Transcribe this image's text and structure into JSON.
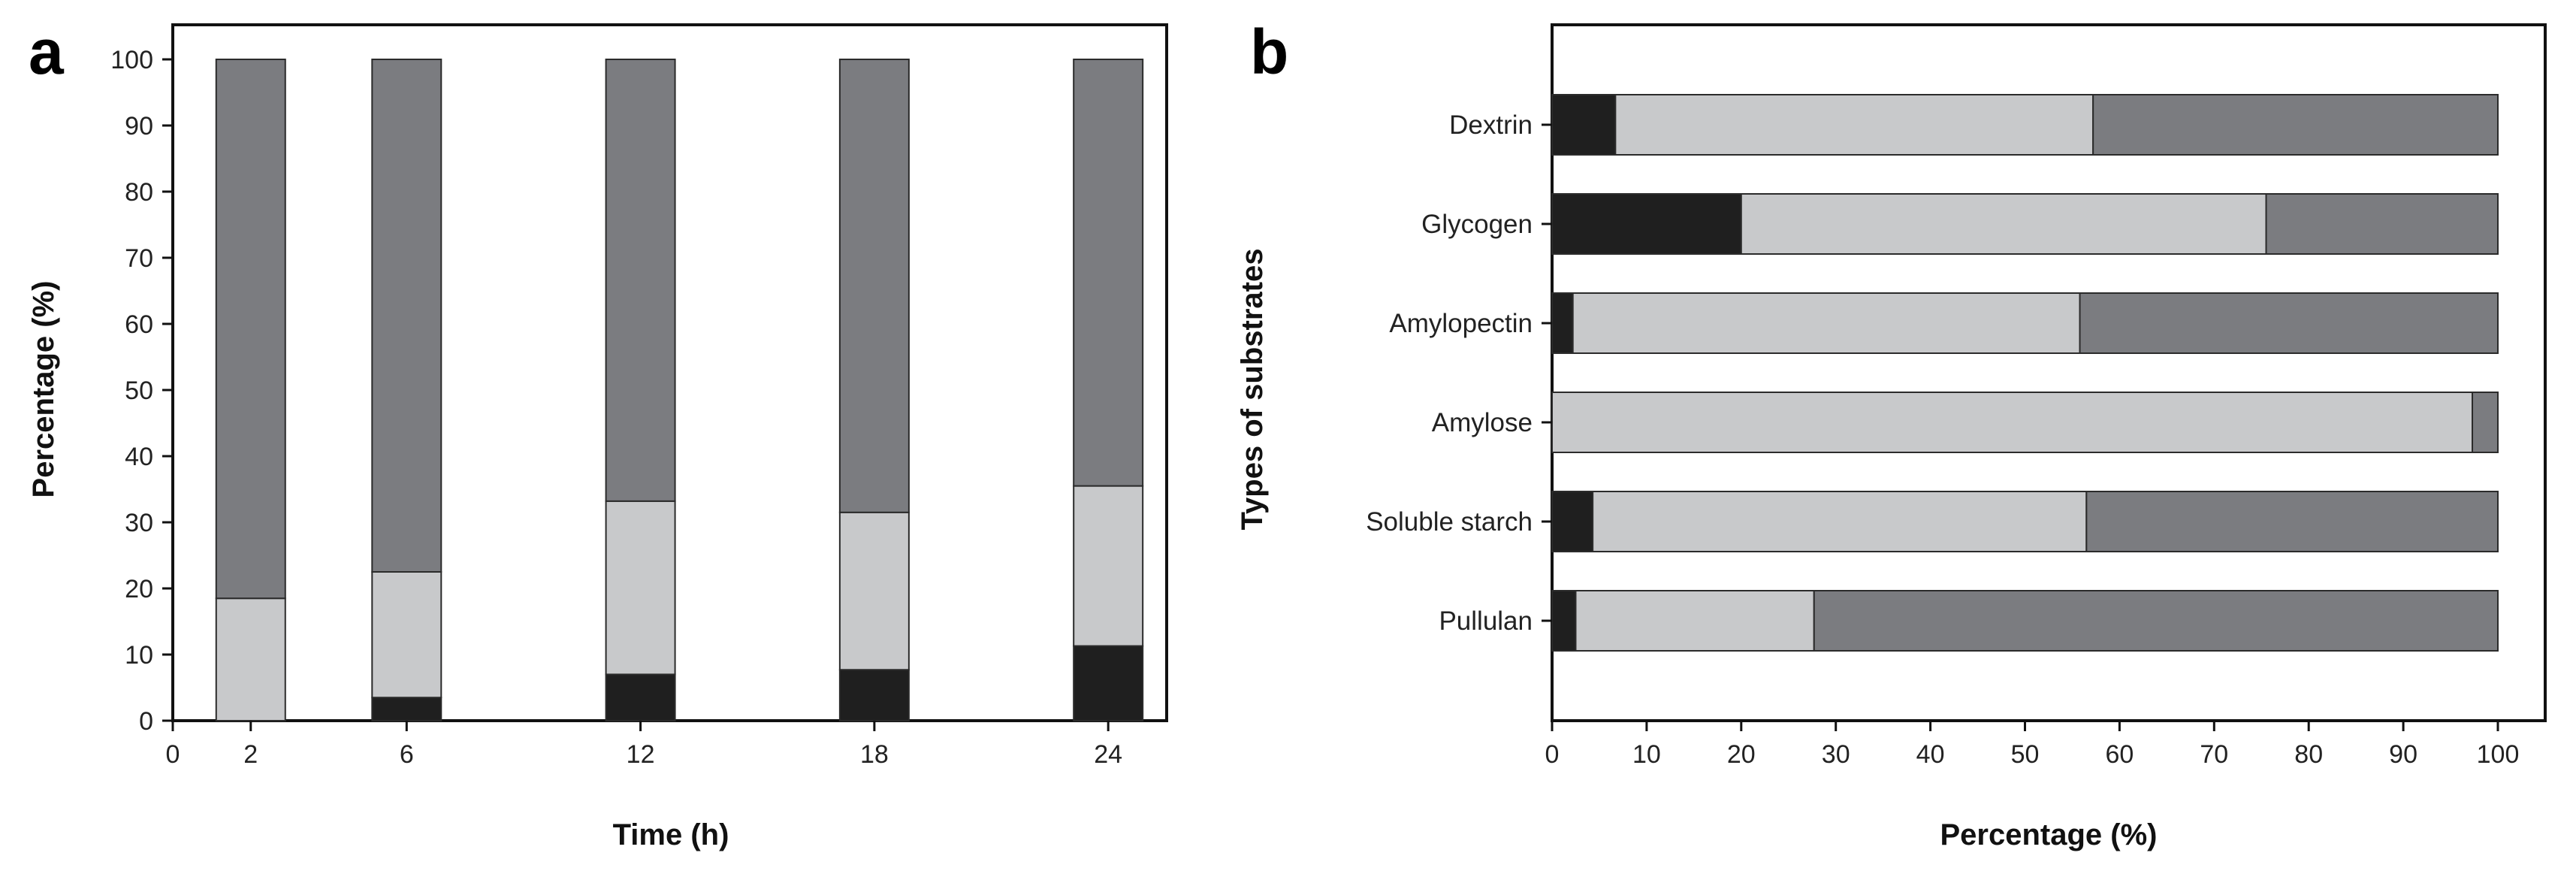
{
  "colors": {
    "lower": "#1f1f1f",
    "middle": "#c8c9cb",
    "upper": "#7b7c80",
    "edge": "#2b2b2b",
    "axis": "#111111"
  },
  "chart_data": [
    {
      "panel": "a",
      "type": "bar",
      "stacked": true,
      "orientation": "vertical",
      "title": "",
      "xlabel": "Time (h)",
      "ylabel": "Percentage (%)",
      "x_numeric": [
        2,
        6,
        12,
        18,
        24
      ],
      "x_ticks": [
        0,
        2,
        6,
        12,
        18,
        24
      ],
      "xlim": [
        0,
        25.5
      ],
      "ylim": [
        0,
        100
      ],
      "y_ticks": [
        0,
        10,
        20,
        30,
        40,
        50,
        60,
        70,
        80,
        90,
        100
      ],
      "grid": false,
      "series": [
        {
          "name": "lower",
          "values": [
            0,
            3.5,
            7,
            7.7,
            11.3
          ]
        },
        {
          "name": "middle",
          "values": [
            18.5,
            19,
            26.2,
            23.8,
            24.2
          ]
        },
        {
          "name": "upper",
          "values": [
            81.5,
            77.5,
            66.8,
            68.5,
            64.5
          ]
        }
      ]
    },
    {
      "panel": "b",
      "type": "bar",
      "stacked": true,
      "orientation": "horizontal",
      "title": "",
      "xlabel": "Percentage (%)",
      "ylabel": "Types of substrates",
      "categories": [
        "Dextrin",
        "Glycogen",
        "Amylopectin",
        "Amylose",
        "Soluble starch",
        "Pullulan"
      ],
      "xlim": [
        0,
        100
      ],
      "x_ticks": [
        0,
        10,
        20,
        30,
        40,
        50,
        60,
        70,
        80,
        90,
        100
      ],
      "grid": false,
      "series": [
        {
          "name": "lower",
          "values": [
            6.7,
            20,
            2.2,
            0,
            4.3,
            2.5
          ]
        },
        {
          "name": "middle",
          "values": [
            50.5,
            55.5,
            53.6,
            97.3,
            52.2,
            25.2
          ]
        },
        {
          "name": "upper",
          "values": [
            42.8,
            24.5,
            44.2,
            2.7,
            43.5,
            72.3
          ]
        }
      ]
    }
  ]
}
